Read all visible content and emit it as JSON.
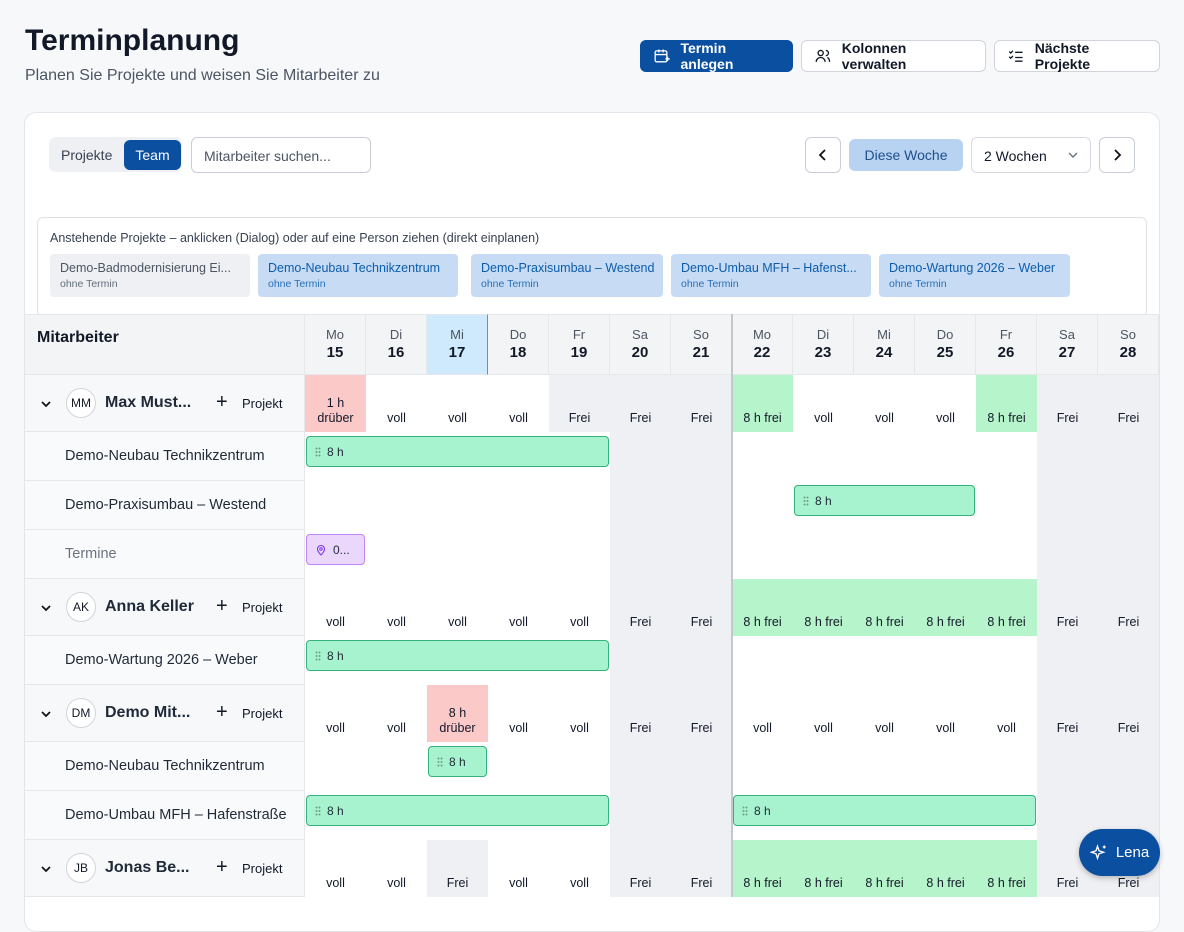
{
  "header": {
    "title": "Terminplanung",
    "subtitle": "Planen Sie Projekte und weisen Sie Mitarbeiter zu"
  },
  "actions": [
    "Termin anlegen",
    "Kolonnen verwalten",
    "Nächste Projekte"
  ],
  "toolbar": {
    "tabs": [
      "Projekte",
      "Team"
    ],
    "search_placeholder": "Mitarbeiter suchen...",
    "this_week": "Diese Woche",
    "range": "2 Wochen"
  },
  "pending": {
    "hint": "Anstehende Projekte – anklicken (Dialog) oder auf eine Person ziehen (direkt einplanen)",
    "items": [
      {
        "name": "Demo-Badmodernisierung Ei...",
        "sub": "ohne Termin",
        "color": "#eef0f3",
        "text_color": "#4b5563"
      },
      {
        "name": "Demo-Neubau Technikzentrum",
        "sub": "ohne Termin",
        "color": "#c7dcf4",
        "text_color": "#0b5cad"
      },
      {
        "name": "Demo-Praxisumbau – Westend",
        "sub": "ohne Termin",
        "color": "#c7dcf4",
        "text_color": "#0b5cad"
      },
      {
        "name": "Demo-Umbau MFH – Hafenst...",
        "sub": "ohne Termin",
        "color": "#c7dcf4",
        "text_color": "#0b5cad"
      },
      {
        "name": "Demo-Wartung 2026 – Weber",
        "sub": "ohne Termin",
        "color": "#c7dcf4",
        "text_color": "#0b5cad"
      }
    ]
  },
  "grid": {
    "column_header": "Mitarbeiter",
    "bar_color": "#a7f3d0",
    "days": [
      {
        "dow": "Mo",
        "date": "15"
      },
      {
        "dow": "Di",
        "date": "16"
      },
      {
        "dow": "Mi",
        "date": "17",
        "today": true
      },
      {
        "dow": "Do",
        "date": "18"
      },
      {
        "dow": "Fr",
        "date": "19"
      },
      {
        "dow": "Sa",
        "date": "20",
        "weekend": true
      },
      {
        "dow": "So",
        "date": "21",
        "weekend": true
      },
      {
        "dow": "Mo",
        "date": "22"
      },
      {
        "dow": "Di",
        "date": "23"
      },
      {
        "dow": "Mi",
        "date": "24"
      },
      {
        "dow": "Do",
        "date": "25"
      },
      {
        "dow": "Fr",
        "date": "26"
      },
      {
        "dow": "Sa",
        "date": "27",
        "weekend": true
      },
      {
        "dow": "So",
        "date": "28",
        "weekend": true
      }
    ],
    "employees": [
      {
        "initials": "MM",
        "name": "Max Must...",
        "add": "Projekt",
        "status": [
          "1 h\ndrüber",
          "voll",
          "voll",
          "voll",
          "Frei",
          "Frei",
          "Frei",
          "8 h frei",
          "voll",
          "voll",
          "voll",
          "8 h frei",
          "Frei",
          "Frei"
        ],
        "colors": [
          "#fcc9c9",
          null,
          null,
          null,
          "#eef0f3",
          null,
          null,
          "#b6f5cb",
          null,
          null,
          null,
          "#b6f5cb",
          null,
          null
        ],
        "rows": [
          {
            "label": "Demo-Neubau Technikzentrum",
            "bars": [
              {
                "from": "15",
                "to": "19",
                "text": "8 h"
              }
            ]
          },
          {
            "label": "Demo-Praxisumbau – Westend",
            "bars": [
              {
                "from": "23",
                "to": "25",
                "text": "8 h"
              }
            ]
          },
          {
            "label": "Termine",
            "label_color": "#6b7280",
            "bars": [
              {
                "from": "15",
                "to": "15",
                "text": "0...",
                "color": "#ead7fb",
                "pin": true
              }
            ]
          }
        ]
      },
      {
        "initials": "AK",
        "name": "Anna Keller",
        "add": "Projekt",
        "status": [
          "voll",
          "voll",
          "voll",
          "voll",
          "voll",
          "Frei",
          "Frei",
          "8 h frei",
          "8 h frei",
          "8 h frei",
          "8 h frei",
          "8 h frei",
          "Frei",
          "Frei"
        ],
        "colors": [
          null,
          null,
          null,
          null,
          null,
          null,
          null,
          "#b6f5cb",
          "#b6f5cb",
          "#b6f5cb",
          "#b6f5cb",
          "#b6f5cb",
          null,
          null
        ],
        "rows": [
          {
            "label": "Demo-Wartung 2026 – Weber",
            "bars": [
              {
                "from": "15",
                "to": "19",
                "text": "8 h"
              }
            ]
          }
        ]
      },
      {
        "initials": "DM",
        "name": "Demo Mit...",
        "add": "Projekt",
        "status": [
          "voll",
          "voll",
          "8 h\ndrüber",
          "voll",
          "voll",
          "Frei",
          "Frei",
          "voll",
          "voll",
          "voll",
          "voll",
          "voll",
          "Frei",
          "Frei"
        ],
        "colors": [
          null,
          null,
          "#fcc9c9",
          null,
          null,
          null,
          null,
          null,
          null,
          null,
          null,
          null,
          null,
          null
        ],
        "rows": [
          {
            "label": "Demo-Neubau Technikzentrum",
            "bars": [
              {
                "from": "17",
                "to": "17",
                "text": "8 h"
              }
            ]
          },
          {
            "label": "Demo-Umbau MFH – Hafenstraße",
            "bars": [
              {
                "from": "15",
                "to": "19",
                "text": "8 h"
              },
              {
                "from": "22",
                "to": "26",
                "text": "8 h"
              }
            ]
          }
        ]
      },
      {
        "initials": "JB",
        "name": "Jonas Be...",
        "add": "Projekt",
        "status": [
          "voll",
          "voll",
          "Frei",
          "voll",
          "voll",
          "Frei",
          "Frei",
          "8 h frei",
          "8 h frei",
          "8 h frei",
          "8 h frei",
          "8 h frei",
          "Frei",
          "Frei"
        ],
        "colors": [
          null,
          null,
          "#eef0f3",
          null,
          null,
          null,
          null,
          "#b6f5cb",
          "#b6f5cb",
          "#b6f5cb",
          "#b6f5cb",
          "#b6f5cb",
          null,
          null
        ],
        "rows": []
      }
    ]
  },
  "assistant": "Lena"
}
